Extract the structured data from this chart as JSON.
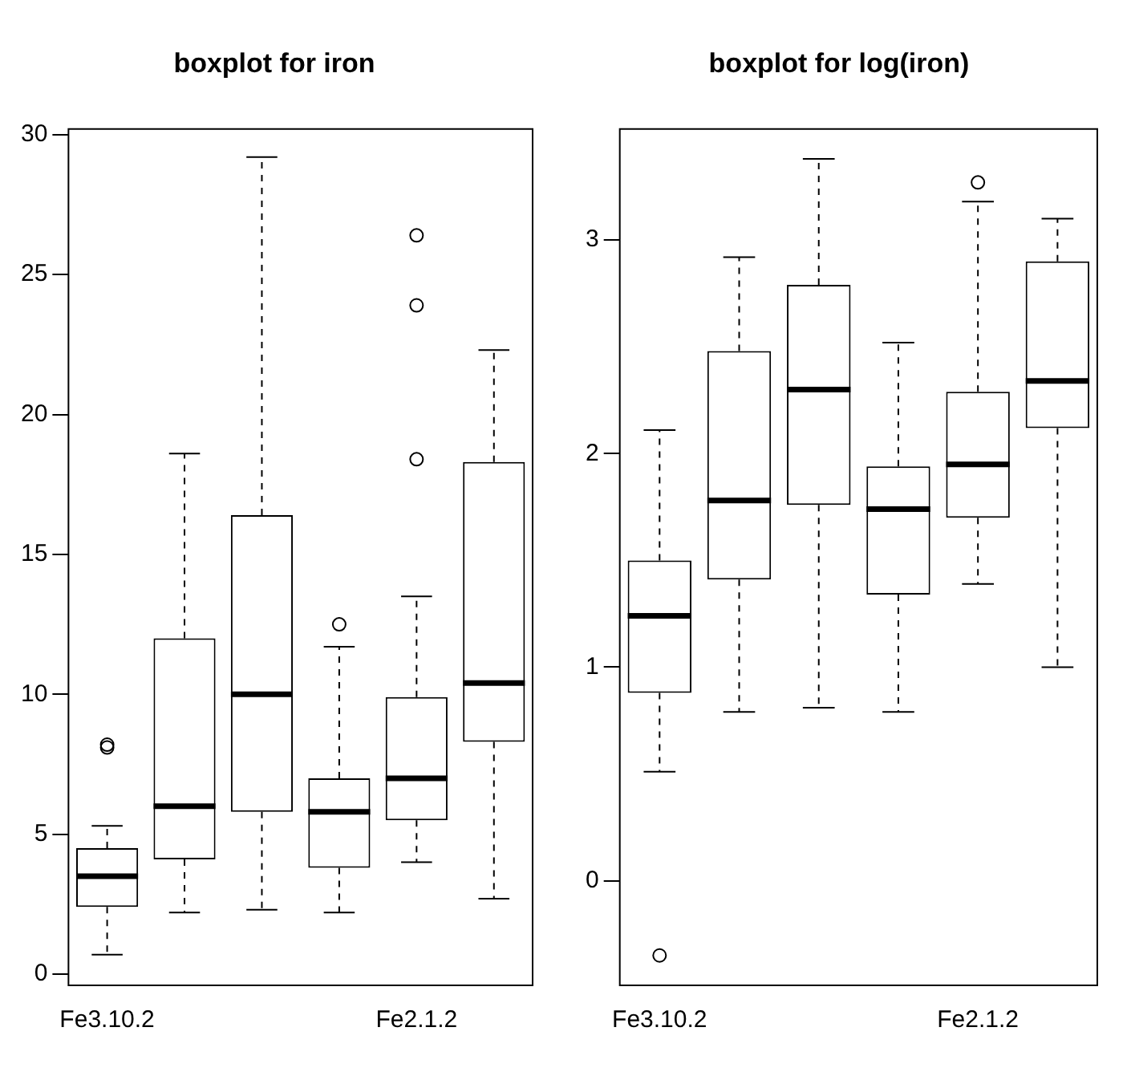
{
  "chart_data": [
    {
      "type": "box",
      "title": "boxplot for iron",
      "categories": [
        "Fe3.10.2",
        null,
        null,
        null,
        "Fe2.1.2",
        null
      ],
      "ylim": [
        -0.4,
        30.2
      ],
      "yticks": [
        0,
        5,
        10,
        15,
        20,
        25,
        30
      ],
      "grid": false,
      "boxes": [
        {
          "low": 0.7,
          "q1": 2.4,
          "median": 3.5,
          "q3": 4.5,
          "high": 5.3,
          "outliers": [
            8.1,
            8.2
          ]
        },
        {
          "low": 2.2,
          "q1": 4.1,
          "median": 6.0,
          "q3": 12.0,
          "high": 18.6
        },
        {
          "low": 2.3,
          "q1": 5.8,
          "median": 10.0,
          "q3": 16.4,
          "high": 29.2
        },
        {
          "low": 2.2,
          "q1": 3.8,
          "median": 5.8,
          "q3": 7.0,
          "high": 11.7,
          "outliers": [
            12.5
          ]
        },
        {
          "low": 4.0,
          "q1": 5.5,
          "median": 7.0,
          "q3": 9.9,
          "high": 13.5,
          "outliers": [
            18.4,
            23.9,
            26.4
          ]
        },
        {
          "low": 2.7,
          "q1": 8.3,
          "median": 10.4,
          "q3": 18.3,
          "high": 22.3
        }
      ]
    },
    {
      "type": "box",
      "title": "boxplot for log(iron)",
      "categories": [
        "Fe3.10.2",
        null,
        null,
        null,
        "Fe2.1.2",
        null
      ],
      "ylim": [
        -0.49,
        3.52
      ],
      "yticks": [
        0,
        1,
        2,
        3
      ],
      "grid": false,
      "boxes": [
        {
          "low": 0.51,
          "q1": 0.88,
          "median": 1.24,
          "q3": 1.5,
          "high": 2.11,
          "outliers": [
            -0.35
          ]
        },
        {
          "low": 0.79,
          "q1": 1.41,
          "median": 1.78,
          "q3": 2.48,
          "high": 2.92
        },
        {
          "low": 0.81,
          "q1": 1.76,
          "median": 2.3,
          "q3": 2.79,
          "high": 3.38
        },
        {
          "low": 0.79,
          "q1": 1.34,
          "median": 1.74,
          "q3": 1.94,
          "high": 2.52
        },
        {
          "low": 1.39,
          "q1": 1.7,
          "median": 1.95,
          "q3": 2.29,
          "high": 3.18,
          "outliers": [
            3.27
          ]
        },
        {
          "low": 1.0,
          "q1": 2.12,
          "median": 2.34,
          "q3": 2.9,
          "high": 3.1
        }
      ]
    }
  ]
}
